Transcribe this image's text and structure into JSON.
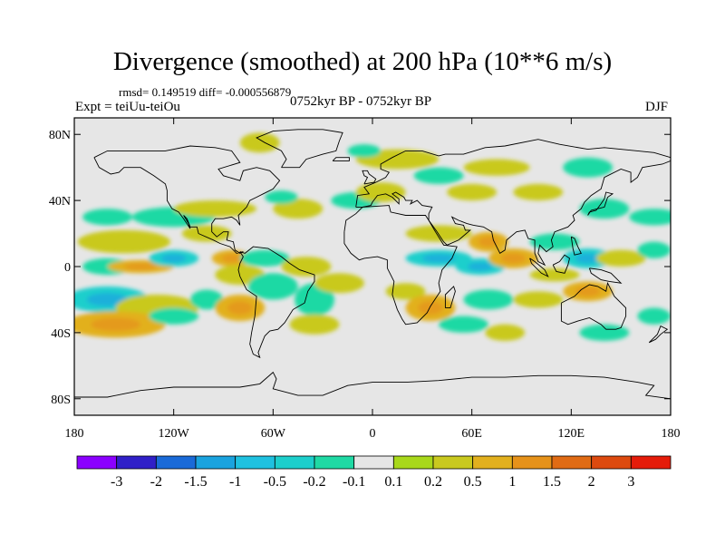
{
  "title": "Divergence (smoothed) at 200 hPa (10**6 m/s)",
  "stats": "rmsd= 0.149519 diff= -0.000556879",
  "experiment": "Expt = teiUu-teiOu",
  "period": "0752kyr BP - 0752kyr BP",
  "season": "DJF",
  "map": {
    "lon_range": [
      -180,
      180
    ],
    "lat_range": [
      -90,
      90
    ],
    "lat_ticks": [
      {
        "lat": 80,
        "label": "80N"
      },
      {
        "lat": 40,
        "label": "40N"
      },
      {
        "lat": 0,
        "label": "0"
      },
      {
        "lat": -40,
        "label": "40S"
      },
      {
        "lat": -80,
        "label": "80S"
      }
    ],
    "lon_ticks": [
      {
        "lon": -180,
        "label": "180"
      },
      {
        "lon": -120,
        "label": "120W"
      },
      {
        "lon": -60,
        "label": "60W"
      },
      {
        "lon": 0,
        "label": "0"
      },
      {
        "lon": 60,
        "label": "60E"
      },
      {
        "lon": 120,
        "label": "120E"
      },
      {
        "lon": 180,
        "label": "180"
      }
    ],
    "anomaly_blobs": [
      {
        "lon": -150,
        "lat": 15,
        "rx": 28,
        "ry": 7,
        "level": 0.2
      },
      {
        "lon": -160,
        "lat": 30,
        "rx": 15,
        "ry": 5,
        "level": -0.2
      },
      {
        "lon": -120,
        "lat": 30,
        "rx": 25,
        "ry": 6,
        "level": -0.2
      },
      {
        "lon": -100,
        "lat": 20,
        "rx": 15,
        "ry": 5,
        "level": 0.2
      },
      {
        "lon": -95,
        "lat": 35,
        "rx": 25,
        "ry": 5,
        "level": 0.2
      },
      {
        "lon": -160,
        "lat": 0,
        "rx": 15,
        "ry": 5,
        "level": -0.2
      },
      {
        "lon": -140,
        "lat": 0,
        "rx": 20,
        "ry": 4,
        "level": 0.5
      },
      {
        "lon": -120,
        "lat": 5,
        "rx": 15,
        "ry": 5,
        "level": -0.5
      },
      {
        "lon": -85,
        "lat": 5,
        "rx": 12,
        "ry": 5,
        "level": 0.5
      },
      {
        "lon": -65,
        "lat": 5,
        "rx": 15,
        "ry": 5,
        "level": -0.2
      },
      {
        "lon": -40,
        "lat": 0,
        "rx": 15,
        "ry": 6,
        "level": 0.2
      },
      {
        "lon": -160,
        "lat": -20,
        "rx": 25,
        "ry": 8,
        "level": -0.5
      },
      {
        "lon": -130,
        "lat": -25,
        "rx": 25,
        "ry": 8,
        "level": 0.2
      },
      {
        "lon": -155,
        "lat": -35,
        "rx": 30,
        "ry": 8,
        "level": 0.5
      },
      {
        "lon": -120,
        "lat": -30,
        "rx": 15,
        "ry": 5,
        "level": -0.2
      },
      {
        "lon": -100,
        "lat": -20,
        "rx": 10,
        "ry": 6,
        "level": -0.2
      },
      {
        "lon": -80,
        "lat": -5,
        "rx": 15,
        "ry": 6,
        "level": 0.2
      },
      {
        "lon": -80,
        "lat": -25,
        "rx": 15,
        "ry": 8,
        "level": 0.5
      },
      {
        "lon": -60,
        "lat": -12,
        "rx": 15,
        "ry": 8,
        "level": -0.2
      },
      {
        "lon": -35,
        "lat": -20,
        "rx": 12,
        "ry": 10,
        "level": -0.2
      },
      {
        "lon": -20,
        "lat": -10,
        "rx": 15,
        "ry": 6,
        "level": 0.2
      },
      {
        "lon": -35,
        "lat": -35,
        "rx": 15,
        "ry": 6,
        "level": 0.2
      },
      {
        "lon": -45,
        "lat": 35,
        "rx": 15,
        "ry": 6,
        "level": 0.2
      },
      {
        "lon": -55,
        "lat": 42,
        "rx": 10,
        "ry": 4,
        "level": -0.2
      },
      {
        "lon": -10,
        "lat": 40,
        "rx": 15,
        "ry": 5,
        "level": -0.2
      },
      {
        "lon": 5,
        "lat": 45,
        "rx": 15,
        "ry": 6,
        "level": 0.2
      },
      {
        "lon": 15,
        "lat": 65,
        "rx": 25,
        "ry": 6,
        "level": 0.2
      },
      {
        "lon": -5,
        "lat": 70,
        "rx": 10,
        "ry": 4,
        "level": -0.2
      },
      {
        "lon": 40,
        "lat": 55,
        "rx": 15,
        "ry": 5,
        "level": -0.2
      },
      {
        "lon": 60,
        "lat": 45,
        "rx": 15,
        "ry": 5,
        "level": 0.2
      },
      {
        "lon": 75,
        "lat": 60,
        "rx": 20,
        "ry": 5,
        "level": 0.2
      },
      {
        "lon": 130,
        "lat": 60,
        "rx": 15,
        "ry": 6,
        "level": -0.2
      },
      {
        "lon": 100,
        "lat": 45,
        "rx": 15,
        "ry": 5,
        "level": 0.2
      },
      {
        "lon": 140,
        "lat": 35,
        "rx": 15,
        "ry": 6,
        "level": -0.2
      },
      {
        "lon": 170,
        "lat": 30,
        "rx": 15,
        "ry": 5,
        "level": -0.2
      },
      {
        "lon": -68,
        "lat": 75,
        "rx": 12,
        "ry": 6,
        "level": 0.2
      },
      {
        "lon": 40,
        "lat": 20,
        "rx": 20,
        "ry": 5,
        "level": 0.2
      },
      {
        "lon": 70,
        "lat": 15,
        "rx": 12,
        "ry": 6,
        "level": 0.5
      },
      {
        "lon": 40,
        "lat": 5,
        "rx": 20,
        "ry": 5,
        "level": -0.5
      },
      {
        "lon": 65,
        "lat": 0,
        "rx": 15,
        "ry": 5,
        "level": -0.5
      },
      {
        "lon": 85,
        "lat": 5,
        "rx": 15,
        "ry": 6,
        "level": 0.5
      },
      {
        "lon": 110,
        "lat": 15,
        "rx": 15,
        "ry": 5,
        "level": -0.2
      },
      {
        "lon": 130,
        "lat": 5,
        "rx": 15,
        "ry": 6,
        "level": -0.5
      },
      {
        "lon": 150,
        "lat": 5,
        "rx": 15,
        "ry": 5,
        "level": 0.2
      },
      {
        "lon": 170,
        "lat": 10,
        "rx": 10,
        "ry": 5,
        "level": -0.2
      },
      {
        "lon": 110,
        "lat": -5,
        "rx": 15,
        "ry": 4,
        "level": 0.2
      },
      {
        "lon": 20,
        "lat": -15,
        "rx": 12,
        "ry": 5,
        "level": 0.2
      },
      {
        "lon": 35,
        "lat": -25,
        "rx": 15,
        "ry": 8,
        "level": 0.5
      },
      {
        "lon": 70,
        "lat": -20,
        "rx": 15,
        "ry": 6,
        "level": -0.2
      },
      {
        "lon": 100,
        "lat": -20,
        "rx": 15,
        "ry": 5,
        "level": 0.2
      },
      {
        "lon": 130,
        "lat": -15,
        "rx": 15,
        "ry": 6,
        "level": 0.5
      },
      {
        "lon": 55,
        "lat": -35,
        "rx": 15,
        "ry": 5,
        "level": -0.2
      },
      {
        "lon": 80,
        "lat": -40,
        "rx": 12,
        "ry": 5,
        "level": 0.2
      },
      {
        "lon": 140,
        "lat": -40,
        "rx": 15,
        "ry": 5,
        "level": -0.2
      },
      {
        "lon": 170,
        "lat": -30,
        "rx": 10,
        "ry": 5,
        "level": -0.2
      }
    ]
  },
  "colorbar": {
    "colors": [
      "#8b00ff",
      "#3020c8",
      "#1a6ad8",
      "#1aa3df",
      "#1fc1e0",
      "#1dcfcc",
      "#1fd9a4",
      "#e6e6e6",
      "#a8d81b",
      "#c9c91f",
      "#e2b01e",
      "#e6921a",
      "#e06b14",
      "#dd4a0f",
      "#e51c0a"
    ],
    "labels": [
      "-3",
      "-2",
      "-1.5",
      "-1",
      "-0.5",
      "-0.2",
      "-0.1",
      "0.1",
      "0.2",
      "0.5",
      "1",
      "1.5",
      "2",
      "3"
    ]
  }
}
